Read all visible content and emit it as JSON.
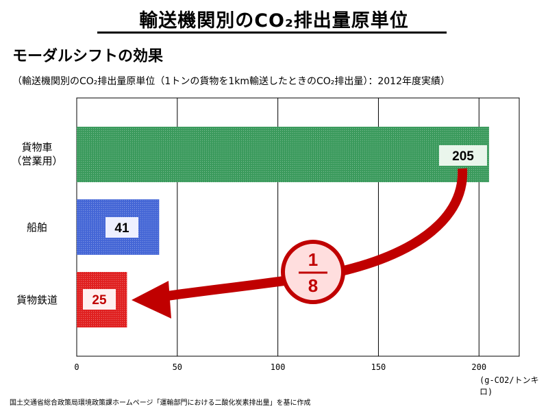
{
  "title": "輸送機関別のCO₂排出量原単位",
  "subtitle": "モーダルシフトの効果",
  "caption": "（輸送機関別のCO₂排出量原単位（1トンの貨物を1km輸送したときのCO₂排出量）：2012年度実績）",
  "source": "国土交通省総合政策局環境政策課ホームページ「運輸部門における二酸化炭素排出量」を基に作成",
  "ratio": {
    "numerator": "1",
    "denominator": "8"
  },
  "colors": {
    "truck": "#3a9a5c",
    "ship": "#4466d6",
    "rail": "#e02020",
    "arrow": "#c00000"
  },
  "chart_data": {
    "type": "bar",
    "orientation": "horizontal",
    "categories": [
      "貨物車\n（営業用）",
      "船舶",
      "貨物鉄道"
    ],
    "values": [
      205,
      41,
      25
    ],
    "xlim": [
      0,
      220
    ],
    "xticks": [
      0,
      50,
      100,
      150,
      200
    ],
    "xlabel": "(g-CO2/トンキロ)",
    "grid": true
  }
}
